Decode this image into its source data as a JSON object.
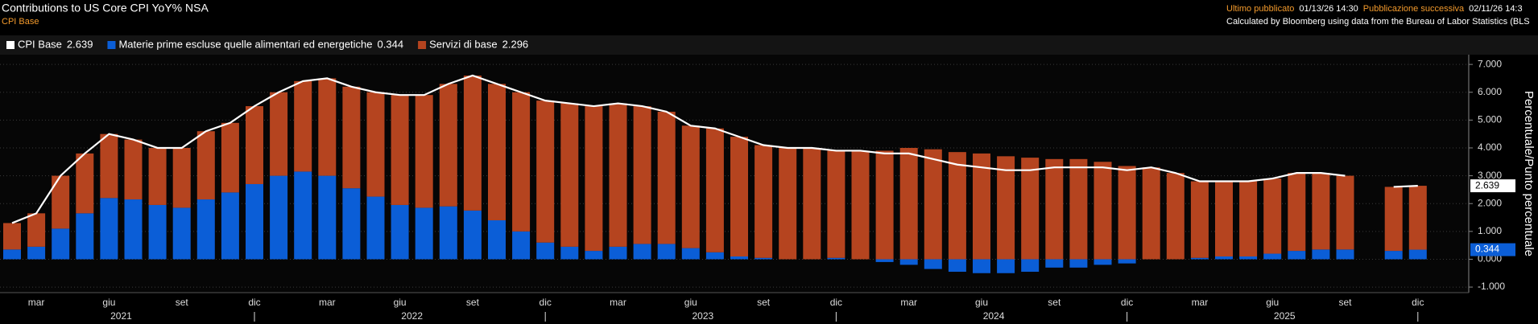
{
  "header": {
    "last_published_label": "Ultimo pubblicato",
    "last_published": "01/13/26 14:30",
    "next_label": "Pubblicazione successiva",
    "next": "02/11/26 14:3",
    "source": "Calculated by Bloomberg using data from the Bureau of Labor Statistics (BLS"
  },
  "chart_data": {
    "type": "stacked_bar_line",
    "title": "Contributions to US Core CPI YoY% NSA",
    "subtitle": "CPI Base",
    "y_axis_label": "Percentuale/Punto percentuale",
    "categories": [
      null,
      "mar",
      null,
      null,
      "giu",
      null,
      null,
      "set",
      null,
      null,
      "dic",
      null,
      null,
      "mar",
      null,
      null,
      "giu",
      null,
      null,
      "set",
      null,
      null,
      "dic",
      null,
      null,
      "mar",
      null,
      null,
      "giu",
      null,
      null,
      "set",
      null,
      null,
      "dic",
      null,
      null,
      "mar",
      null,
      null,
      "giu",
      null,
      null,
      "set",
      null,
      null,
      "dic",
      null,
      null,
      "mar",
      null,
      null,
      "giu",
      null,
      null,
      "set",
      null,
      null,
      "dic"
    ],
    "years": [
      "2021",
      "2022",
      "2023",
      "2024",
      "2025"
    ],
    "series": [
      {
        "name": "CPI Base",
        "color": "#ffffff",
        "kind": "line",
        "values": [
          1.3,
          1.65,
          3.0,
          3.8,
          4.5,
          4.3,
          4.0,
          4.0,
          4.6,
          4.9,
          5.5,
          6.0,
          6.4,
          6.5,
          6.2,
          6.0,
          5.9,
          5.9,
          6.3,
          6.6,
          6.3,
          6.0,
          5.7,
          5.6,
          5.5,
          5.6,
          5.5,
          5.3,
          4.8,
          4.7,
          4.4,
          4.1,
          4.0,
          4.0,
          3.9,
          3.9,
          3.8,
          3.8,
          3.6,
          3.4,
          3.3,
          3.2,
          3.2,
          3.3,
          3.3,
          3.3,
          3.2,
          3.3,
          3.1,
          2.8,
          2.8,
          2.8,
          2.9,
          3.1,
          3.1,
          3.0,
          null,
          2.6,
          2.639
        ]
      },
      {
        "name": "Materie prime escluse quelle alimentari ed energetiche",
        "color": "#0b5ed7",
        "kind": "bar",
        "values": [
          0.35,
          0.45,
          1.1,
          1.65,
          2.2,
          2.15,
          1.95,
          1.85,
          2.15,
          2.4,
          2.7,
          3.0,
          3.15,
          3.0,
          2.55,
          2.25,
          1.95,
          1.85,
          1.9,
          1.75,
          1.4,
          1.0,
          0.6,
          0.45,
          0.3,
          0.45,
          0.55,
          0.55,
          0.4,
          0.25,
          0.1,
          0.05,
          0.0,
          0.0,
          0.05,
          0.0,
          -0.1,
          -0.2,
          -0.35,
          -0.45,
          -0.5,
          -0.5,
          -0.45,
          -0.3,
          -0.3,
          -0.2,
          -0.15,
          0.0,
          0.0,
          0.05,
          0.1,
          0.1,
          0.2,
          0.3,
          0.35,
          0.35,
          null,
          0.3,
          0.344
        ]
      },
      {
        "name": "Servizi di base",
        "color": "#b5441f",
        "kind": "bar",
        "values": [
          0.95,
          1.2,
          1.9,
          2.15,
          2.3,
          2.15,
          2.05,
          2.15,
          2.45,
          2.5,
          2.8,
          3.0,
          3.25,
          3.5,
          3.65,
          3.75,
          3.95,
          4.05,
          4.4,
          4.85,
          4.9,
          5.0,
          5.1,
          5.15,
          5.2,
          5.15,
          4.95,
          4.75,
          4.4,
          4.45,
          4.3,
          4.05,
          4.0,
          4.0,
          3.85,
          3.9,
          3.9,
          4.0,
          3.95,
          3.85,
          3.8,
          3.7,
          3.65,
          3.6,
          3.6,
          3.5,
          3.35,
          3.3,
          3.1,
          2.75,
          2.7,
          2.7,
          2.7,
          2.8,
          2.75,
          2.65,
          null,
          2.3,
          2.296
        ]
      }
    ],
    "ylim": [
      -1.2,
      7.35
    ],
    "yticks": [
      {
        "value": -1,
        "label": "-1.000"
      },
      {
        "value": 0,
        "label": "0.000"
      },
      {
        "value": 1,
        "label": "1.000"
      },
      {
        "value": 2,
        "label": "2.000"
      },
      {
        "value": 3,
        "label": "3.000"
      },
      {
        "value": 4,
        "label": "4.000"
      },
      {
        "value": 5,
        "label": "5.000"
      },
      {
        "value": 6,
        "label": "6.000"
      },
      {
        "value": 7,
        "label": "7.000"
      }
    ],
    "grid": true
  }
}
